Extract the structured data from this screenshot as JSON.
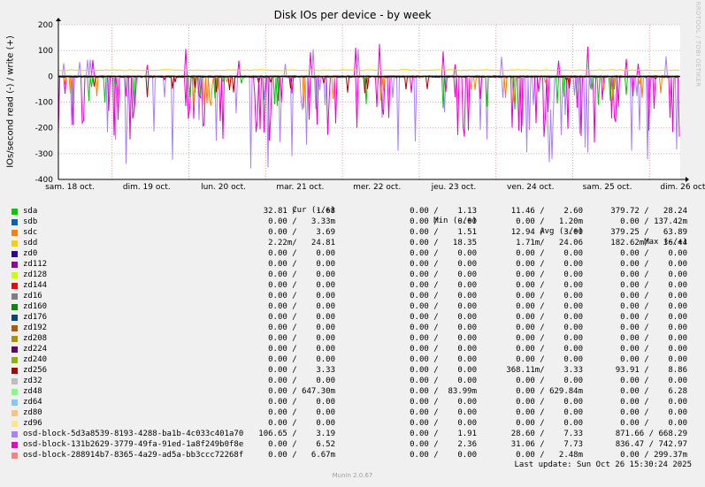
{
  "chart_data": {
    "type": "line",
    "title": "Disk IOs per device - by week",
    "ylabel": "IOs/second read (-) / write (+)",
    "ylim": [
      -400,
      200
    ],
    "yticks": [
      "200",
      "100",
      "0",
      "-100",
      "-200",
      "-300",
      "-400"
    ],
    "ytick_values": [
      200,
      100,
      0,
      -100,
      -200,
      -300,
      -400
    ],
    "xticks": [
      "sam. 18 oct.",
      "dim. 19 oct.",
      "lun. 20 oct.",
      "mar. 21 oct.",
      "mer. 22 oct.",
      "jeu. 23 oct.",
      "ven. 24 oct.",
      "sam. 25 oct.",
      "dim. 26 oct."
    ],
    "grid": true,
    "legend_header": {
      "cur": "Cur (-/+)",
      "min": "Min (-/+)",
      "avg": "Avg (-/+)",
      "max": "Max (-/+)"
    },
    "series": [
      {
        "name": "sda",
        "color": "#00cc00",
        "cur": "32.81 /    1.68",
        "min": "0.00 /    1.13",
        "avg": "11.46 /    2.60",
        "max": "379.72 /   28.24"
      },
      {
        "name": "sdb",
        "color": "#0066b3",
        "cur": "0.00 /   3.33m",
        "min": "0.00 /    0.00",
        "avg": "0.00 /   1.20m",
        "max": "0.00 / 137.42m"
      },
      {
        "name": "sdc",
        "color": "#ff8000",
        "cur": "0.00 /    3.69",
        "min": "0.00 /    1.51",
        "avg": "12.94 /    3.00",
        "max": "379.25 /   63.89"
      },
      {
        "name": "sdd",
        "color": "#ffcc00",
        "cur": "2.22m/   24.81",
        "min": "0.00 /   18.35",
        "avg": "1.71m/   24.06",
        "max": "182.62m/   36.44"
      },
      {
        "name": "zd0",
        "color": "#330099",
        "cur": "0.00 /    0.00",
        "min": "0.00 /    0.00",
        "avg": "0.00 /    0.00",
        "max": "0.00 /    0.00"
      },
      {
        "name": "zd112",
        "color": "#990099",
        "cur": "0.00 /    0.00",
        "min": "0.00 /    0.00",
        "avg": "0.00 /    0.00",
        "max": "0.00 /    0.00"
      },
      {
        "name": "zd128",
        "color": "#ccff00",
        "cur": "0.00 /    0.00",
        "min": "0.00 /    0.00",
        "avg": "0.00 /    0.00",
        "max": "0.00 /    0.00"
      },
      {
        "name": "zd144",
        "color": "#ff0000",
        "cur": "0.00 /    0.00",
        "min": "0.00 /    0.00",
        "avg": "0.00 /    0.00",
        "max": "0.00 /    0.00"
      },
      {
        "name": "zd16",
        "color": "#808080",
        "cur": "0.00 /    0.00",
        "min": "0.00 /    0.00",
        "avg": "0.00 /    0.00",
        "max": "0.00 /    0.00"
      },
      {
        "name": "zd160",
        "color": "#008f00",
        "cur": "0.00 /    0.00",
        "min": "0.00 /    0.00",
        "avg": "0.00 /    0.00",
        "max": "0.00 /    0.00"
      },
      {
        "name": "zd176",
        "color": "#00487d",
        "cur": "0.00 /    0.00",
        "min": "0.00 /    0.00",
        "avg": "0.00 /    0.00",
        "max": "0.00 /    0.00"
      },
      {
        "name": "zd192",
        "color": "#b35a00",
        "cur": "0.00 /    0.00",
        "min": "0.00 /    0.00",
        "avg": "0.00 /    0.00",
        "max": "0.00 /    0.00"
      },
      {
        "name": "zd208",
        "color": "#b38f00",
        "cur": "0.00 /    0.00",
        "min": "0.00 /    0.00",
        "avg": "0.00 /    0.00",
        "max": "0.00 /    0.00"
      },
      {
        "name": "zd224",
        "color": "#6b006b",
        "cur": "0.00 /    0.00",
        "min": "0.00 /    0.00",
        "avg": "0.00 /    0.00",
        "max": "0.00 /    0.00"
      },
      {
        "name": "zd240",
        "color": "#8fb300",
        "cur": "0.00 /    0.00",
        "min": "0.00 /    0.00",
        "avg": "0.00 /    0.00",
        "max": "0.00 /    0.00"
      },
      {
        "name": "zd256",
        "color": "#b30000",
        "cur": "0.00 /    3.33",
        "min": "0.00 /    0.00",
        "avg": "368.11m/    3.33",
        "max": "93.91 /    8.86"
      },
      {
        "name": "zd32",
        "color": "#bebebe",
        "cur": "0.00 /    0.00",
        "min": "0.00 /    0.00",
        "avg": "0.00 /    0.00",
        "max": "0.00 /    0.00"
      },
      {
        "name": "zd48",
        "color": "#80ff80",
        "cur": "0.00 / 647.30m",
        "min": "0.00 /  83.99m",
        "avg": "0.00 / 629.84m",
        "max": "0.00 /    6.28"
      },
      {
        "name": "zd64",
        "color": "#80c9ff",
        "cur": "0.00 /    0.00",
        "min": "0.00 /    0.00",
        "avg": "0.00 /    0.00",
        "max": "0.00 /    0.00"
      },
      {
        "name": "zd80",
        "color": "#ffc080",
        "cur": "0.00 /    0.00",
        "min": "0.00 /    0.00",
        "avg": "0.00 /    0.00",
        "max": "0.00 /    0.00"
      },
      {
        "name": "zd96",
        "color": "#ffe680",
        "cur": "0.00 /    0.00",
        "min": "0.00 /    0.00",
        "avg": "0.00 /    0.00",
        "max": "0.00 /    0.00"
      },
      {
        "name": "osd-block-5d3a8539-8193-4288-ba1b-4c033c401a70",
        "color": "#aa80ff",
        "cur": "106.65 /    3.19",
        "min": "0.00 /    1.91",
        "avg": "28.60 /    7.33",
        "max": "871.66 / 668.29"
      },
      {
        "name": "osd-block-131b2629-3779-49fa-91ed-1a8f249b0f8e",
        "color": "#ee00cc",
        "cur": "0.00 /    6.52",
        "min": "0.00 /    2.36",
        "avg": "31.06 /    7.73",
        "max": "836.47 / 742.97"
      },
      {
        "name": "osd-block-288914b7-8365-4a29-ad5a-bb3ccc72268f",
        "color": "#ff8080",
        "cur": "0.00 /   6.67m",
        "min": "0.00 /    0.00",
        "avg": "0.00 /   2.48m",
        "max": "0.00 / 299.37m"
      }
    ]
  },
  "watermark": "RRDTOOL / TOBI OETIKER",
  "footer": {
    "last_update": "Last update: Sun Oct 26 15:30:24 2025",
    "generator": "Munin 2.0.67"
  }
}
